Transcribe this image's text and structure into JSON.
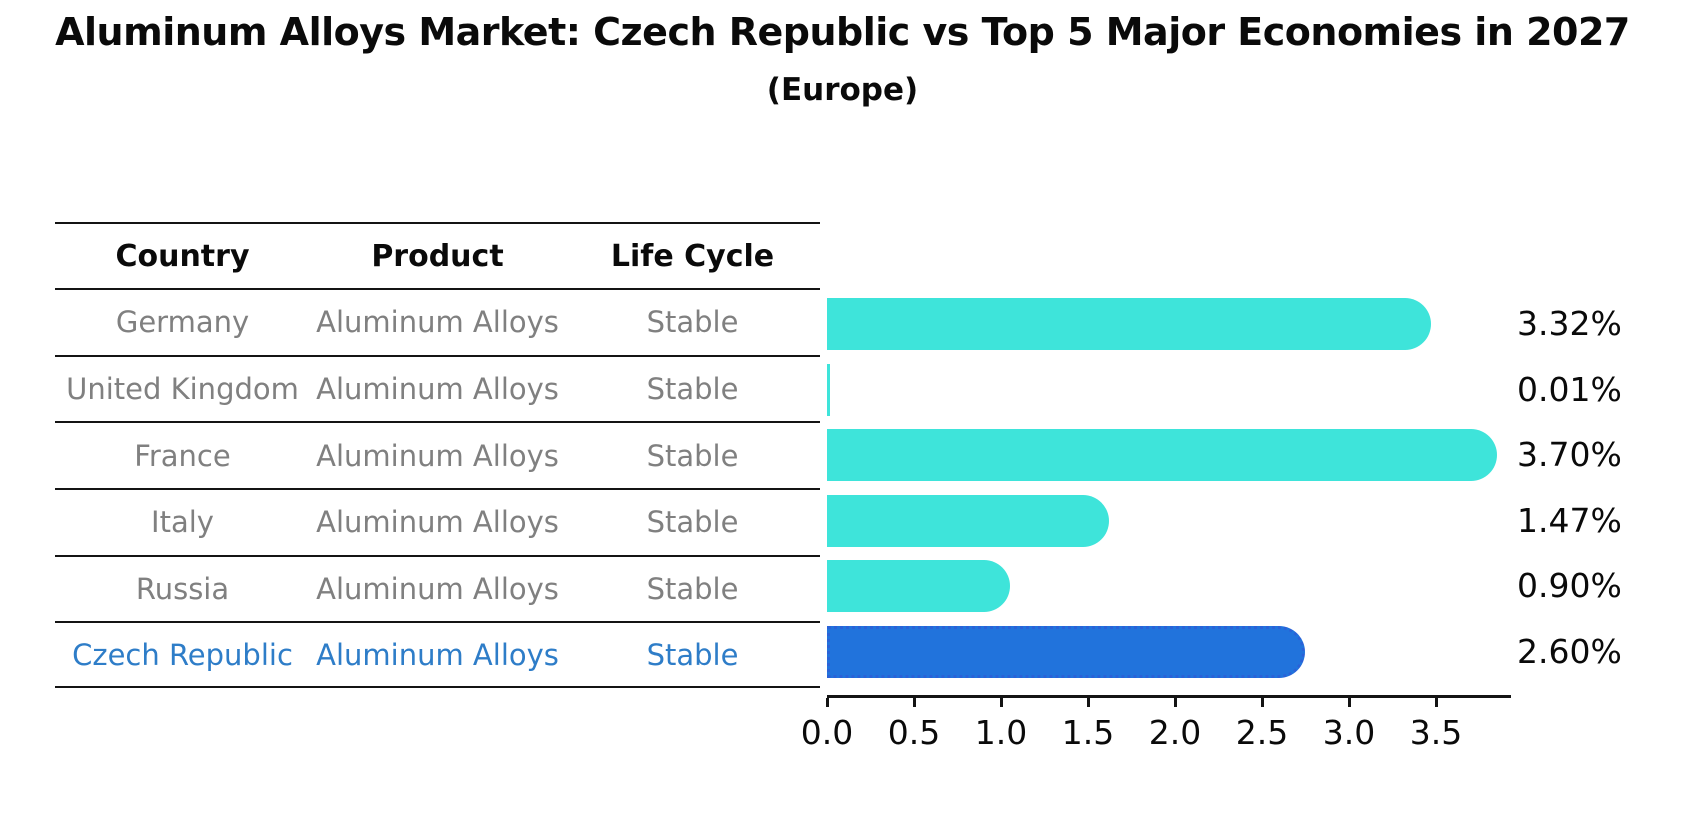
{
  "title": "Aluminum Alloys Market: Czech Republic vs Top 5 Major Economies in 2027",
  "subtitle": "(Europe)",
  "table": {
    "headers": [
      "Country",
      "Product",
      "Life Cycle"
    ],
    "rows": [
      {
        "country": "Germany",
        "product": "Aluminum Alloys",
        "life_cycle": "Stable",
        "highlighted": false
      },
      {
        "country": "United Kingdom",
        "product": "Aluminum Alloys",
        "life_cycle": "Stable",
        "highlighted": false
      },
      {
        "country": "France",
        "product": "Aluminum Alloys",
        "life_cycle": "Stable",
        "highlighted": false
      },
      {
        "country": "Italy",
        "product": "Aluminum Alloys",
        "life_cycle": "Stable",
        "highlighted": false
      },
      {
        "country": "Russia",
        "product": "Aluminum Alloys",
        "life_cycle": "Stable",
        "highlighted": false
      },
      {
        "country": "Czech Republic",
        "product": "Aluminum Alloys",
        "life_cycle": "Stable",
        "highlighted": true
      }
    ]
  },
  "chart_data": {
    "type": "bar",
    "orientation": "horizontal",
    "title": "Aluminum Alloys Market: Czech Republic vs Top 5 Major Economies in 2027",
    "subtitle": "(Europe)",
    "categories": [
      "Germany",
      "United Kingdom",
      "France",
      "Italy",
      "Russia",
      "Czech Republic"
    ],
    "values": [
      3.32,
      0.01,
      3.7,
      1.47,
      0.9,
      2.6
    ],
    "value_labels": [
      "3.32%",
      "0.01%",
      "3.70%",
      "1.47%",
      "0.90%",
      "2.60%"
    ],
    "xlabel": "",
    "ylabel": "",
    "xlim": [
      0,
      3.885
    ],
    "xticks": [
      0.0,
      0.5,
      1.0,
      1.5,
      2.0,
      2.5,
      3.0,
      3.5
    ],
    "xtick_labels": [
      "0.0",
      "0.5",
      "1.0",
      "1.5",
      "2.0",
      "2.5",
      "3.0",
      "3.5"
    ],
    "grid": false,
    "legend": false,
    "bar_color": "#3EE4DA",
    "highlight_index": 5,
    "highlight_color": "#2173DC",
    "highlight_border_color": "#2A62D8",
    "text_color": "#0a0a0a",
    "muted_text_color": "#808080",
    "highlight_text_color": "#2e7dc8"
  }
}
